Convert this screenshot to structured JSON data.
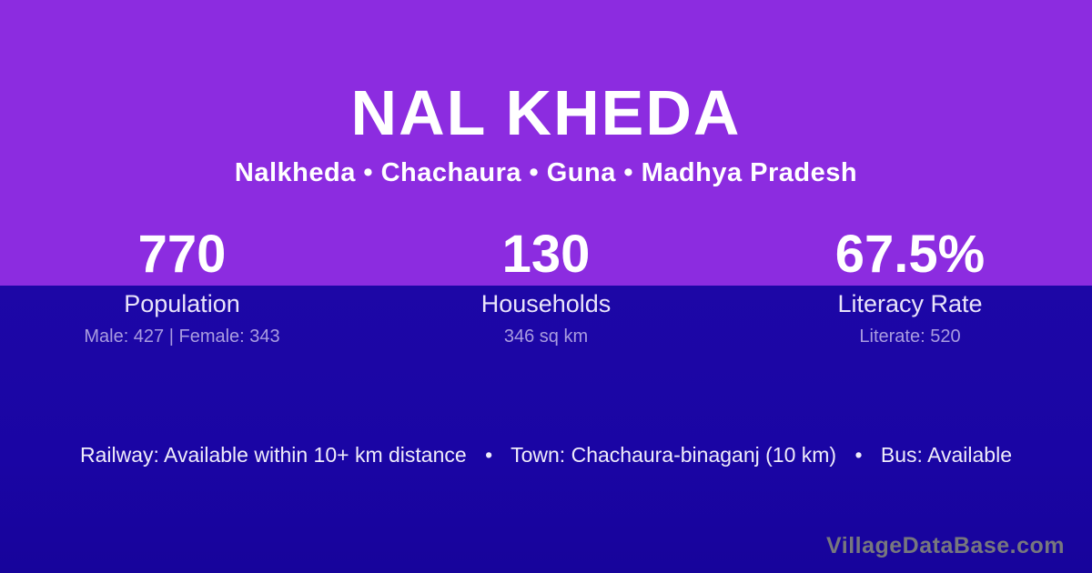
{
  "colors": {
    "top_background": "#8C2CE0",
    "bottom_background": "#1A05A6",
    "title_text": "#FFFFFF",
    "stat_label_text": "#E9E4FA",
    "stat_detail_text": "#A99CE0",
    "info_text": "#EFECFA",
    "watermark_text": "#77777E"
  },
  "header": {
    "title": "NAL KHEDA",
    "subtitle": "Nalkheda • Chachaura • Guna • Madhya Pradesh"
  },
  "stats": [
    {
      "value": "770",
      "label": "Population",
      "detail": "Male: 427 | Female: 343"
    },
    {
      "value": "130",
      "label": "Households",
      "detail": "346 sq km"
    },
    {
      "value": "67.5%",
      "label": "Literacy Rate",
      "detail": "Literate: 520"
    }
  ],
  "info": {
    "separator": "•",
    "items": [
      "Railway: Available within 10+ km distance",
      "Town: Chachaura-binaganj (10 km)",
      "Bus: Available"
    ]
  },
  "footer": {
    "watermark": "VillageDataBase.com"
  }
}
